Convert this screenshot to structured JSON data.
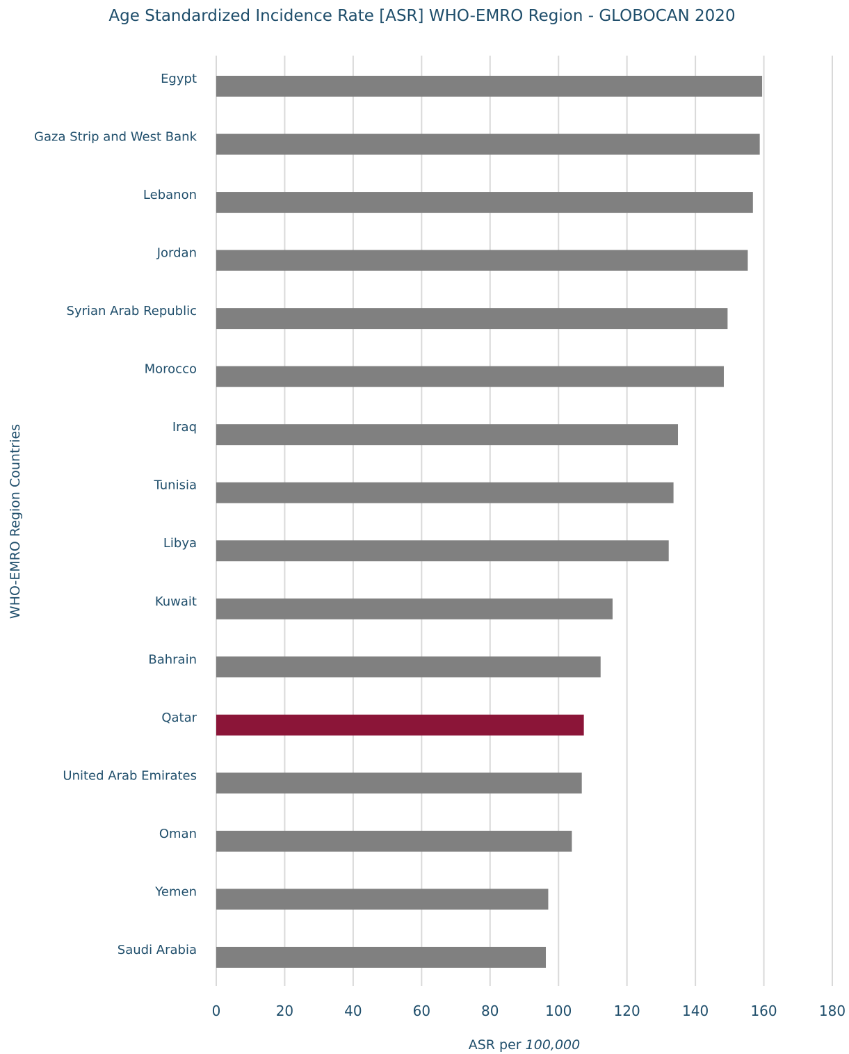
{
  "chart_data": {
    "type": "bar",
    "orientation": "horizontal",
    "title": "Age Standardized Incidence Rate [ASR] WHO-EMRO Region - GLOBOCAN 2020",
    "xlabel": {
      "prefix": "ASR per ",
      "italic": "100,000"
    },
    "ylabel": "WHO-EMRO Region Countries",
    "xlim": [
      0,
      180
    ],
    "xticks": [
      0,
      20,
      40,
      60,
      80,
      100,
      120,
      140,
      160,
      180
    ],
    "grid": true,
    "categories": [
      "Egypt",
      "Gaza Strip and West Bank",
      "Lebanon",
      "Jordan",
      "Syrian Arab Republic",
      "Morocco",
      "Iraq",
      "Tunisia",
      "Libya",
      "Kuwait",
      "Bahrain",
      "Qatar",
      "United Arab Emirates",
      "Oman",
      "Yemen",
      "Saudi Arabia"
    ],
    "values": [
      159.5,
      158.8,
      156.8,
      155.3,
      149.4,
      148.3,
      134.9,
      133.6,
      132.2,
      115.8,
      112.3,
      107.4,
      106.8,
      103.9,
      97.0,
      96.3
    ],
    "highlight": "Qatar",
    "colors": {
      "default": "#808080",
      "highlight": "#8b1538",
      "text": "#1f4e6b",
      "grid": "#d9d9d9"
    }
  }
}
